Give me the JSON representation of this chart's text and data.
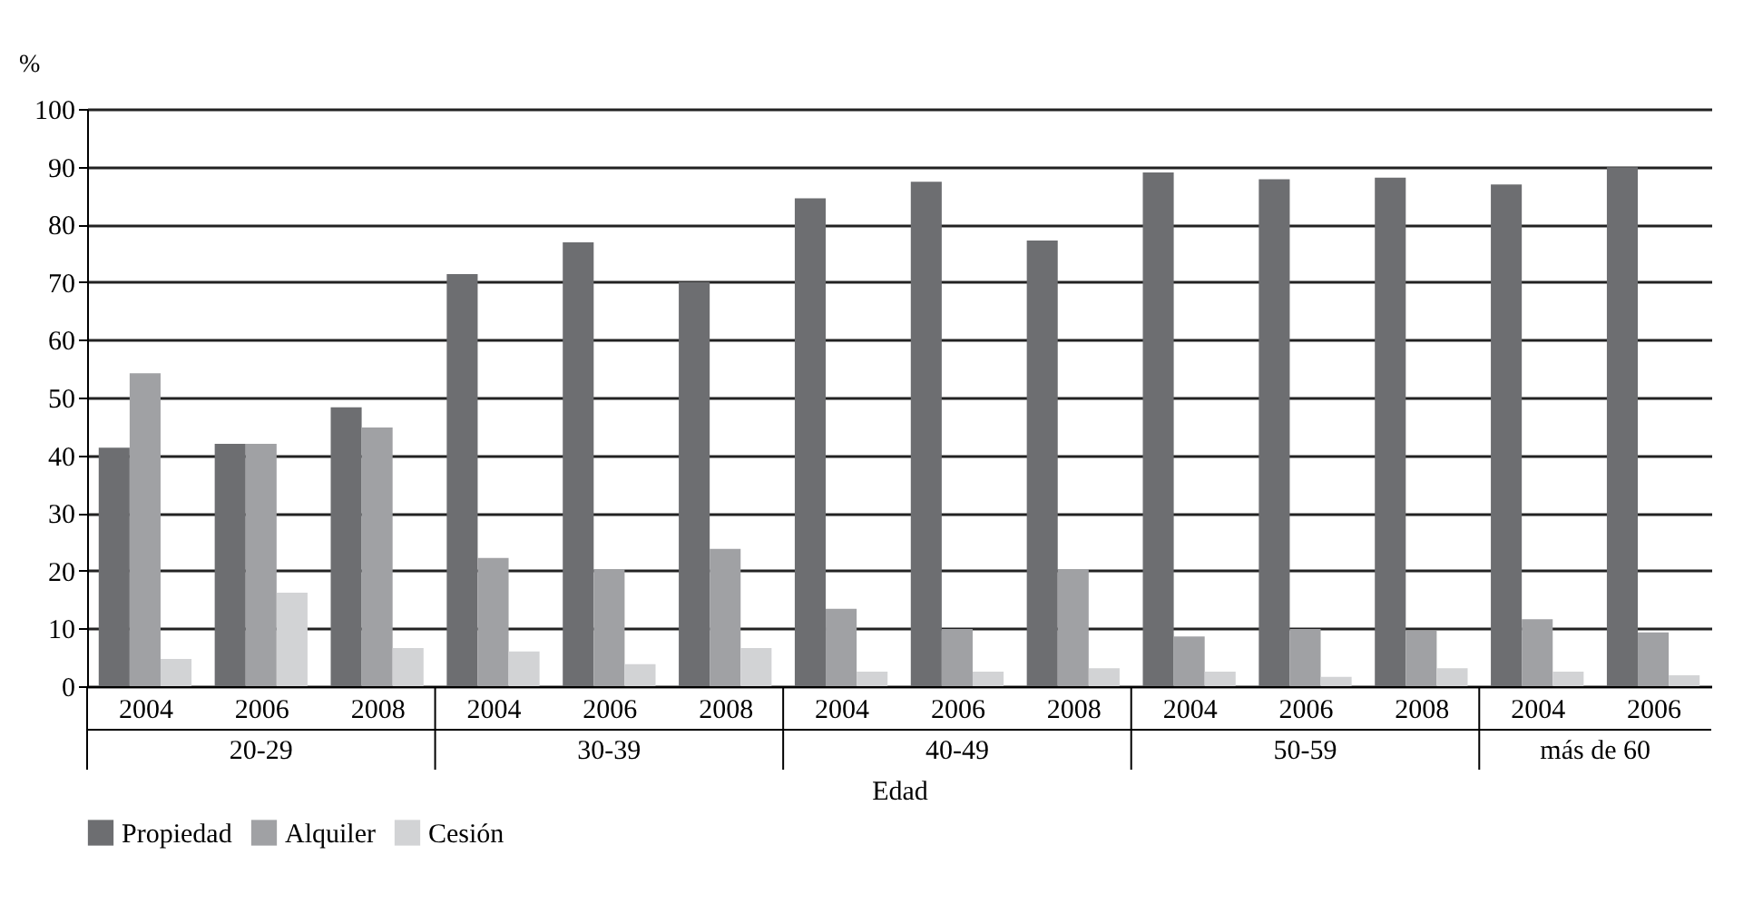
{
  "chart_data": {
    "type": "bar",
    "categories": [
      "2004",
      "2006",
      "2008",
      "2004",
      "2006",
      "2008",
      "2004",
      "2006",
      "2008",
      "2004",
      "2006",
      "2008",
      "2004",
      "2006"
    ],
    "series": [
      {
        "name": "Propiedad",
        "color": "#6d6e71",
        "values": [
          41.3,
          42,
          48.3,
          71.4,
          76.9,
          70,
          84.5,
          87.4,
          77.2,
          89,
          87.8,
          88.1,
          86.9,
          89.9
        ]
      },
      {
        "name": "Alquiler",
        "color": "#a0a1a4",
        "values": [
          54.2,
          42,
          44.8,
          22.2,
          20.3,
          23.8,
          13.4,
          9.9,
          20.3,
          8.6,
          9.9,
          9.6,
          11.6,
          9.3
        ]
      },
      {
        "name": "Cesión",
        "color": "#d2d3d5",
        "values": [
          4.7,
          16.2,
          6.6,
          6,
          3.8,
          6.6,
          2.5,
          2.5,
          3.1,
          2.5,
          1.6,
          3.1,
          2.5,
          1.9
        ]
      }
    ],
    "xlabel": "Edad",
    "ylabel": "%",
    "annotations": [
      "20-29",
      "30-39",
      "40-49",
      "50-59",
      "más de 60"
    ],
    "ylim": [
      0,
      100
    ],
    "yticks": [
      0,
      10,
      20,
      30,
      40,
      50,
      60,
      70,
      80,
      90,
      100
    ],
    "grid": "y",
    "legend": "bottom"
  }
}
